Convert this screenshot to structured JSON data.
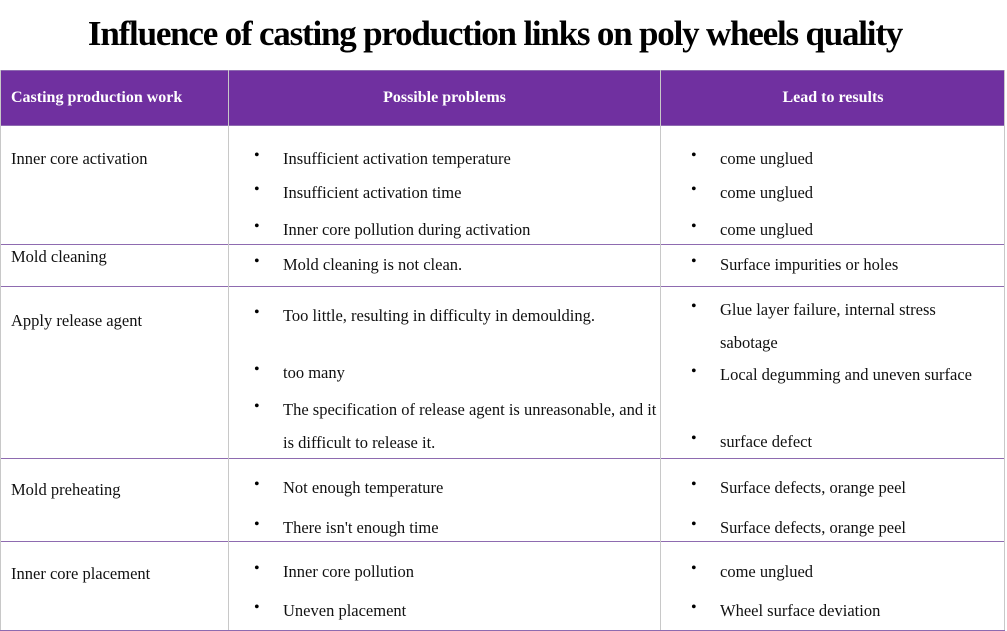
{
  "title": "Influence of casting production links on poly wheels quality",
  "table": {
    "header": [
      "Casting production work",
      "Possible problems",
      "Lead to results"
    ],
    "rows": [
      {
        "work": "Inner core activation",
        "problems": [
          "Insufficient activation temperature",
          "Insufficient activation time",
          "Inner core pollution during activation"
        ],
        "results": [
          "come unglued",
          "come unglued",
          "come unglued"
        ]
      },
      {
        "work": "Mold cleaning",
        "problems": [
          "Mold cleaning is not clean."
        ],
        "results": [
          "Surface impurities or holes"
        ]
      },
      {
        "work": "Apply release agent",
        "problems": [
          "Too little, resulting in difficulty in demoulding.",
          "too many",
          "The specification of release agent is unreasonable, and it is difficult to release it."
        ],
        "results": [
          "Glue layer failure, internal stress sabotage",
          "Local degumming and uneven surface",
          "surface defect"
        ]
      },
      {
        "work": "Mold preheating",
        "problems": [
          "Not enough temperature",
          "There isn't enough time"
        ],
        "results": [
          "Surface defects, orange peel",
          "Surface defects, orange peel"
        ]
      },
      {
        "work": "Inner core placement",
        "problems": [
          "Inner core pollution",
          "Uneven placement"
        ],
        "results": [
          "come unglued",
          "Wheel surface deviation"
        ]
      }
    ]
  }
}
